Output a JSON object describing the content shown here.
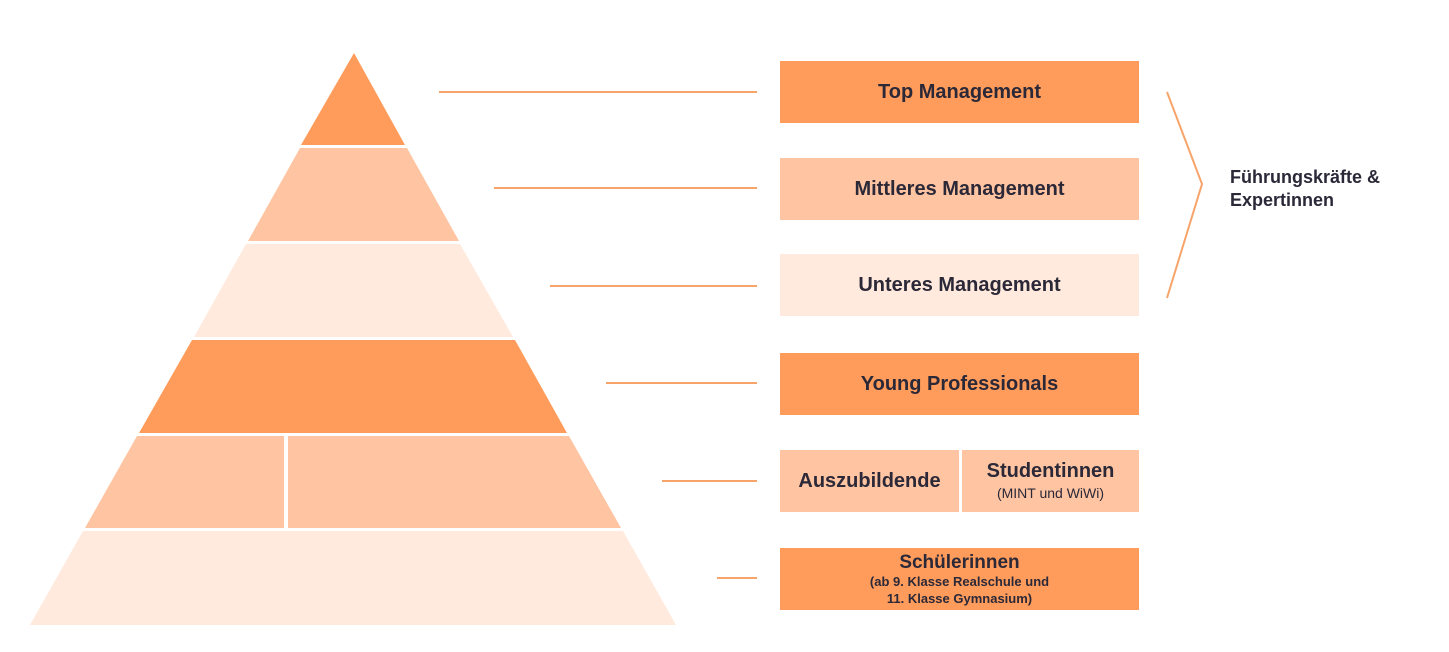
{
  "colors": {
    "dark": "#ff9c5b",
    "mid": "#ffc4a1",
    "light": "#ffeadd",
    "connector": "#f7a46a",
    "text": "#2b2838"
  },
  "levels": {
    "top_management": "Top Management",
    "mittleres_management": "Mittleres Management",
    "unteres_management": "Unteres Management",
    "young_professionals": "Young Professionals",
    "auszubildende": "Auszubildende",
    "studentinnen": "Studentinnen",
    "studentinnen_sub": "(MINT und WiWi)",
    "schuelerinnen": "Schülerinnen",
    "schuelerinnen_sub_line1": "(ab 9. Klasse Realschule und",
    "schuelerinnen_sub_line2": "11. Klasse Gymnasium)"
  },
  "group": {
    "line1": "Führungskräfte &",
    "line2": "Expertinnen"
  }
}
